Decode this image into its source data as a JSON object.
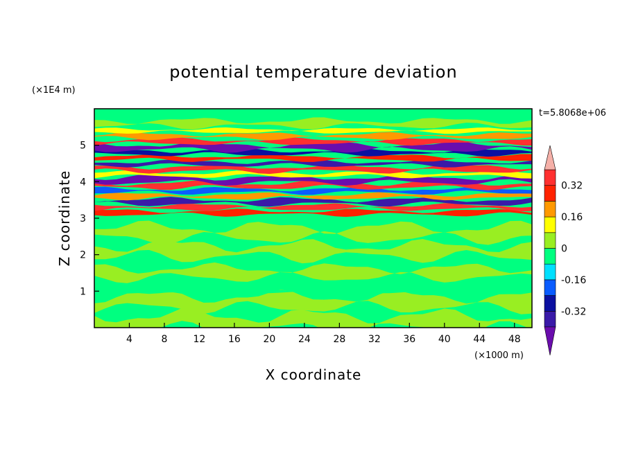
{
  "chart_data": {
    "type": "heatmap",
    "title": "potential temperature deviation",
    "xlabel": "X coordinate",
    "ylabel": "Z coordinate",
    "x_unit": "(×1000 m)",
    "y_unit": "(×1E4 m)",
    "time_label": "t=5.8068e+06",
    "xlim": [
      0,
      50
    ],
    "ylim": [
      0,
      6
    ],
    "x_ticks": [
      "4",
      "8",
      "12",
      "16",
      "20",
      "24",
      "28",
      "32",
      "36",
      "40",
      "44",
      "48"
    ],
    "y_ticks": [
      "1",
      "2",
      "3",
      "4",
      "5"
    ],
    "colorbar": {
      "levels": [
        -0.4,
        -0.32,
        -0.24,
        -0.16,
        -0.08,
        0,
        0.08,
        0.16,
        0.24,
        0.32,
        0.4
      ],
      "labels": [
        "0.32",
        "0.16",
        "0",
        "-0.16",
        "-0.32"
      ],
      "colors_low_to_high": [
        "#6a0dad",
        "#3a1aa8",
        "#0b10a0",
        "#0a5cff",
        "#00e0ff",
        "#00ff80",
        "#99ee22",
        "#ffff00",
        "#ff9900",
        "#ff2200",
        "#ff3030",
        "#f5b0a8"
      ]
    },
    "bands": [
      {
        "z": 0.15,
        "thickness": 0.35,
        "level": 1
      },
      {
        "z": 0.7,
        "thickness": 0.3,
        "level": 1
      },
      {
        "z": 1.0,
        "thickness": 0.05,
        "level": 0
      },
      {
        "z": 1.5,
        "thickness": 0.25,
        "level": 1
      },
      {
        "z": 2.1,
        "thickness": 0.3,
        "level": 1
      },
      {
        "z": 2.6,
        "thickness": 0.3,
        "level": 1
      },
      {
        "z": 3.15,
        "thickness": 0.1,
        "level": 4
      },
      {
        "z": 3.3,
        "thickness": 0.1,
        "level": 5
      },
      {
        "z": 3.45,
        "thickness": 0.12,
        "level": -4
      },
      {
        "z": 3.6,
        "thickness": 0.1,
        "level": 3
      },
      {
        "z": 3.75,
        "thickness": 0.1,
        "level": -2
      },
      {
        "z": 3.9,
        "thickness": 0.12,
        "level": 5
      },
      {
        "z": 4.05,
        "thickness": 0.14,
        "level": -5
      },
      {
        "z": 4.2,
        "thickness": 0.1,
        "level": 2
      },
      {
        "z": 4.35,
        "thickness": 0.12,
        "level": 5
      },
      {
        "z": 4.5,
        "thickness": 0.1,
        "level": -4
      },
      {
        "z": 4.65,
        "thickness": 0.1,
        "level": 4
      },
      {
        "z": 4.8,
        "thickness": 0.1,
        "level": -3
      },
      {
        "z": 4.95,
        "thickness": 0.14,
        "level": -5
      },
      {
        "z": 5.1,
        "thickness": 0.1,
        "level": 5
      },
      {
        "z": 5.25,
        "thickness": 0.1,
        "level": 3
      },
      {
        "z": 5.4,
        "thickness": 0.08,
        "level": 2
      },
      {
        "z": 5.6,
        "thickness": 0.15,
        "level": 1
      }
    ]
  }
}
